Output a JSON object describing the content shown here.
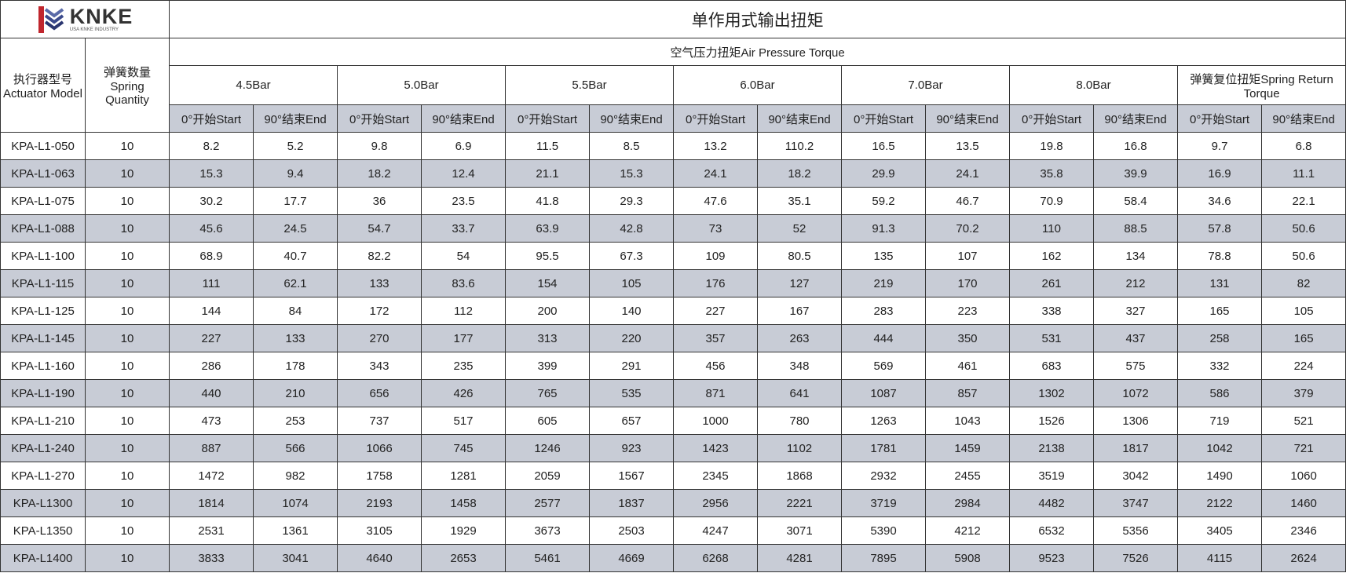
{
  "logo": {
    "brand": "KNKE",
    "tagline": "USA KNKE INDUSTRY"
  },
  "title": "单作用式输出扭矩",
  "header": {
    "model": "执行器型号 Actuator Model",
    "spring": "弹簧数量 Spring Quantity",
    "air": "空气压力扭矩Air Pressure Torque",
    "groups": [
      "4.5Bar",
      "5.0Bar",
      "5.5Bar",
      "6.0Bar",
      "7.0Bar",
      "8.0Bar",
      "弹簧复位扭矩Spring Return Torque"
    ],
    "start": "0°开始Start",
    "end": "90°结束End"
  },
  "rows": [
    [
      "KPA-L1-050",
      "10",
      "8.2",
      "5.2",
      "9.8",
      "6.9",
      "11.5",
      "8.5",
      "13.2",
      "110.2",
      "16.5",
      "13.5",
      "19.8",
      "16.8",
      "9.7",
      "6.8"
    ],
    [
      "KPA-L1-063",
      "10",
      "15.3",
      "9.4",
      "18.2",
      "12.4",
      "21.1",
      "15.3",
      "24.1",
      "18.2",
      "29.9",
      "24.1",
      "35.8",
      "39.9",
      "16.9",
      "11.1"
    ],
    [
      "KPA-L1-075",
      "10",
      "30.2",
      "17.7",
      "36",
      "23.5",
      "41.8",
      "29.3",
      "47.6",
      "35.1",
      "59.2",
      "46.7",
      "70.9",
      "58.4",
      "34.6",
      "22.1"
    ],
    [
      "KPA-L1-088",
      "10",
      "45.6",
      "24.5",
      "54.7",
      "33.7",
      "63.9",
      "42.8",
      "73",
      "52",
      "91.3",
      "70.2",
      "110",
      "88.5",
      "57.8",
      "50.6"
    ],
    [
      "KPA-L1-100",
      "10",
      "68.9",
      "40.7",
      "82.2",
      "54",
      "95.5",
      "67.3",
      "109",
      "80.5",
      "135",
      "107",
      "162",
      "134",
      "78.8",
      "50.6"
    ],
    [
      "KPA-L1-115",
      "10",
      "111",
      "62.1",
      "133",
      "83.6",
      "154",
      "105",
      "176",
      "127",
      "219",
      "170",
      "261",
      "212",
      "131",
      "82"
    ],
    [
      "KPA-L1-125",
      "10",
      "144",
      "84",
      "172",
      "112",
      "200",
      "140",
      "227",
      "167",
      "283",
      "223",
      "338",
      "327",
      "165",
      "105"
    ],
    [
      "KPA-L1-145",
      "10",
      "227",
      "133",
      "270",
      "177",
      "313",
      "220",
      "357",
      "263",
      "444",
      "350",
      "531",
      "437",
      "258",
      "165"
    ],
    [
      "KPA-L1-160",
      "10",
      "286",
      "178",
      "343",
      "235",
      "399",
      "291",
      "456",
      "348",
      "569",
      "461",
      "683",
      "575",
      "332",
      "224"
    ],
    [
      "KPA-L1-190",
      "10",
      "440",
      "210",
      "656",
      "426",
      "765",
      "535",
      "871",
      "641",
      "1087",
      "857",
      "1302",
      "1072",
      "586",
      "379"
    ],
    [
      "KPA-L1-210",
      "10",
      "473",
      "253",
      "737",
      "517",
      "605",
      "657",
      "1000",
      "780",
      "1263",
      "1043",
      "1526",
      "1306",
      "719",
      "521"
    ],
    [
      "KPA-L1-240",
      "10",
      "887",
      "566",
      "1066",
      "745",
      "1246",
      "923",
      "1423",
      "1102",
      "1781",
      "1459",
      "2138",
      "1817",
      "1042",
      "721"
    ],
    [
      "KPA-L1-270",
      "10",
      "1472",
      "982",
      "1758",
      "1281",
      "2059",
      "1567",
      "2345",
      "1868",
      "2932",
      "2455",
      "3519",
      "3042",
      "1490",
      "1060"
    ],
    [
      "KPA-L1300",
      "10",
      "1814",
      "1074",
      "2193",
      "1458",
      "2577",
      "1837",
      "2956",
      "2221",
      "3719",
      "2984",
      "4482",
      "3747",
      "2122",
      "1460"
    ],
    [
      "KPA-L1350",
      "10",
      "2531",
      "1361",
      "3105",
      "1929",
      "3673",
      "2503",
      "4247",
      "3071",
      "5390",
      "4212",
      "6532",
      "5356",
      "3405",
      "2346"
    ],
    [
      "KPA-L1400",
      "10",
      "3833",
      "3041",
      "4640",
      "2653",
      "5461",
      "4669",
      "6268",
      "4281",
      "7895",
      "5908",
      "9523",
      "7526",
      "4115",
      "2624"
    ]
  ],
  "colors": {
    "stripe": "#c8ccd6",
    "logo_red": "#c0262d",
    "logo_blue": "#3b4a8c"
  }
}
